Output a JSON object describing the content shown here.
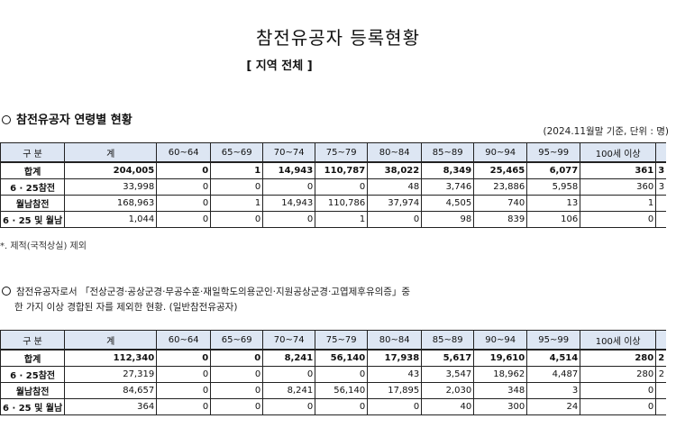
{
  "title": "참전유공자 등록현황",
  "subtitle": "[ 지역 전체 ]",
  "section1": {
    "heading": "참전유공자 연령별 현황",
    "reference": "(2024.11월말 기준, 단위 : 명)",
    "footnote": "*. 제적(국적상실) 제외",
    "headers": [
      "구   분",
      "계",
      "60~64",
      "65~69",
      "70~74",
      "75~79",
      "80~84",
      "85~89",
      "90~94",
      "95~99",
      "100세 이상",
      ""
    ],
    "rows": [
      {
        "label": "합계",
        "values": [
          "204,005",
          "0",
          "1",
          "14,943",
          "110,787",
          "38,022",
          "8,349",
          "25,465",
          "6,077",
          "361",
          "3"
        ]
      },
      {
        "label": "6 · 25참전",
        "values": [
          "33,998",
          "0",
          "0",
          "0",
          "0",
          "48",
          "3,746",
          "23,886",
          "5,958",
          "360",
          "3"
        ]
      },
      {
        "label": "월남참전",
        "values": [
          "168,963",
          "0",
          "1",
          "14,943",
          "110,786",
          "37,974",
          "4,505",
          "740",
          "13",
          "1",
          ""
        ]
      },
      {
        "label": "6 · 25 및 월남",
        "values": [
          "1,044",
          "0",
          "0",
          "0",
          "1",
          "0",
          "98",
          "839",
          "106",
          "0",
          ""
        ]
      }
    ]
  },
  "section2": {
    "heading_line1": "참전유공자로서 「전상군경·공상군경·무공수훈·재일학도의용군인·지원공상군경·고엽제후유의증」중",
    "heading_line2": "한 가지 이상 경합된 자를 제외한 현황. (일반참전유공자)",
    "headers": [
      "구   분",
      "계",
      "60~64",
      "65~69",
      "70~74",
      "75~79",
      "80~84",
      "85~89",
      "90~94",
      "95~99",
      "100세 이상",
      ""
    ],
    "rows": [
      {
        "label": "합계",
        "values": [
          "112,340",
          "0",
          "0",
          "8,241",
          "56,140",
          "17,938",
          "5,617",
          "19,610",
          "4,514",
          "280",
          "2"
        ]
      },
      {
        "label": "6 · 25참전",
        "values": [
          "27,319",
          "0",
          "0",
          "0",
          "0",
          "43",
          "3,547",
          "18,962",
          "4,487",
          "280",
          "2"
        ]
      },
      {
        "label": "월남참전",
        "values": [
          "84,657",
          "0",
          "0",
          "8,241",
          "56,140",
          "17,895",
          "2,030",
          "348",
          "3",
          "0",
          ""
        ]
      },
      {
        "label": "6 · 25 및 월남",
        "values": [
          "364",
          "0",
          "0",
          "0",
          "0",
          "0",
          "40",
          "300",
          "24",
          "0",
          ""
        ]
      }
    ]
  }
}
